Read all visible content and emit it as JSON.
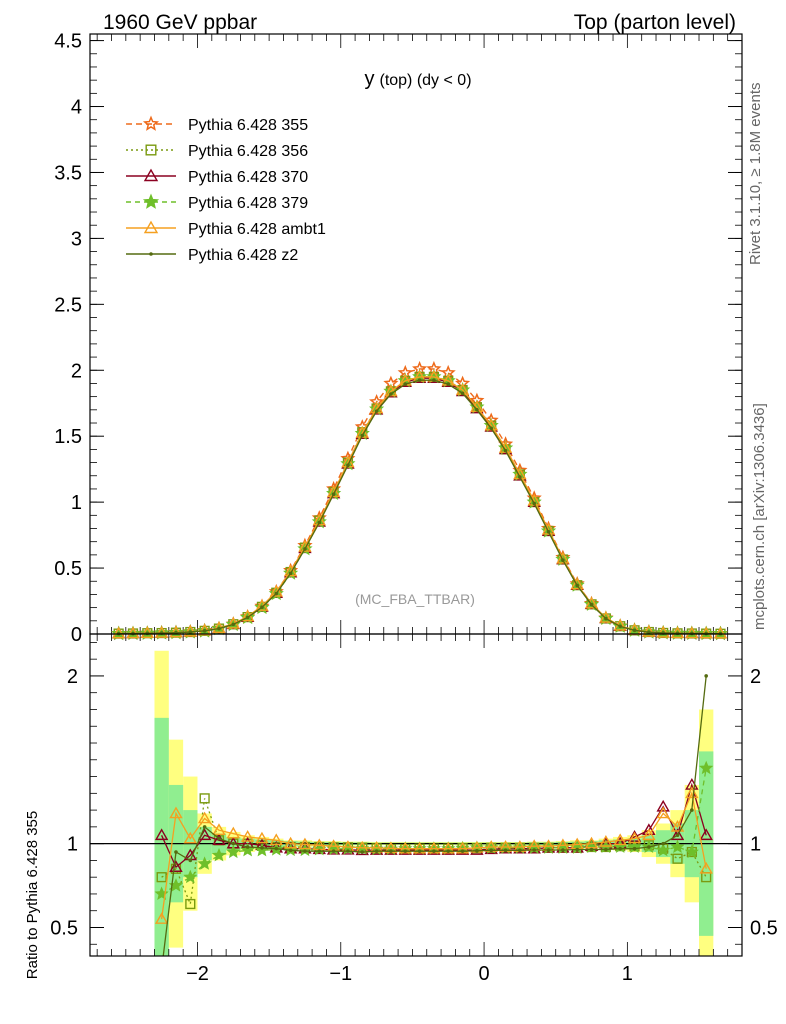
{
  "header": {
    "left": "1960 GeV ppbar",
    "right": "Top (parton level)"
  },
  "side_text": {
    "rivet": "Rivet 3.1.10, ≥ 1.8M events",
    "mcplots": "mcplots.cern.ch [arXiv:1306.3436]"
  },
  "chart_data": [
    {
      "type": "line",
      "title": "y (top) (dy < 0)",
      "title_main": "y",
      "title_sub": "(top) (dy < 0)",
      "watermark": "(MC_FBA_TTBAR)",
      "xlim": [
        -2.75,
        1.8
      ],
      "ylim": [
        0,
        4.55
      ],
      "yticks": [
        0,
        0.5,
        1,
        1.5,
        2,
        2.5,
        3,
        3.5,
        4,
        4.5
      ],
      "ytick_labels": [
        "0",
        "0.5",
        "1",
        "1.5",
        "2",
        "2.5",
        "3",
        "3.5",
        "4",
        "4.5"
      ],
      "legend_position": "top-left",
      "x": [
        -2.55,
        -2.45,
        -2.35,
        -2.25,
        -2.15,
        -2.05,
        -1.95,
        -1.85,
        -1.75,
        -1.65,
        -1.55,
        -1.45,
        -1.35,
        -1.25,
        -1.15,
        -1.05,
        -0.95,
        -0.85,
        -0.75,
        -0.65,
        -0.55,
        -0.45,
        -0.35,
        -0.25,
        -0.15,
        -0.05,
        0.05,
        0.15,
        0.25,
        0.35,
        0.45,
        0.55,
        0.65,
        0.75,
        0.85,
        0.95,
        1.05,
        1.15,
        1.25,
        1.35,
        1.45,
        1.55,
        1.65
      ],
      "series": [
        {
          "name": "Pythia 6.428 355",
          "color": "#ee6a1a",
          "marker": "star-open",
          "dash": "6,4",
          "values": [
            0.003,
            0.004,
            0.006,
            0.008,
            0.011,
            0.016,
            0.025,
            0.042,
            0.075,
            0.13,
            0.21,
            0.32,
            0.48,
            0.67,
            0.88,
            1.1,
            1.33,
            1.57,
            1.76,
            1.9,
            1.98,
            2.01,
            2.01,
            1.98,
            1.9,
            1.77,
            1.62,
            1.44,
            1.24,
            1.03,
            0.8,
            0.58,
            0.38,
            0.23,
            0.12,
            0.06,
            0.029,
            0.015,
            0.008,
            0.005,
            0.004,
            0.003,
            0.002
          ]
        },
        {
          "name": "Pythia 6.428 356",
          "color": "#7a9a10",
          "marker": "square-open",
          "dash": "2,3",
          "values": [
            0.003,
            0.004,
            0.006,
            0.007,
            0.01,
            0.015,
            0.024,
            0.041,
            0.074,
            0.128,
            0.206,
            0.313,
            0.47,
            0.655,
            0.86,
            1.075,
            1.3,
            1.53,
            1.71,
            1.84,
            1.92,
            1.95,
            1.95,
            1.92,
            1.85,
            1.72,
            1.58,
            1.4,
            1.21,
            1.0,
            0.78,
            0.565,
            0.37,
            0.225,
            0.118,
            0.059,
            0.028,
            0.015,
            0.008,
            0.005,
            0.004,
            0.003,
            0.002
          ]
        },
        {
          "name": "Pythia 6.428 370",
          "color": "#8b0020",
          "marker": "triangle-open",
          "dash": "",
          "values": [
            0.003,
            0.004,
            0.006,
            0.008,
            0.011,
            0.016,
            0.025,
            0.042,
            0.074,
            0.128,
            0.205,
            0.31,
            0.465,
            0.65,
            0.85,
            1.065,
            1.29,
            1.515,
            1.7,
            1.83,
            1.91,
            1.94,
            1.94,
            1.91,
            1.84,
            1.71,
            1.57,
            1.4,
            1.2,
            1.0,
            0.78,
            0.565,
            0.37,
            0.225,
            0.118,
            0.059,
            0.028,
            0.015,
            0.009,
            0.006,
            0.005,
            0.003,
            0.002
          ]
        },
        {
          "name": "Pythia 6.428 379",
          "color": "#6fbf2a",
          "marker": "star-filled",
          "dash": "5,4",
          "values": [
            0.002,
            0.003,
            0.005,
            0.007,
            0.009,
            0.014,
            0.022,
            0.039,
            0.071,
            0.124,
            0.2,
            0.305,
            0.46,
            0.645,
            0.85,
            1.065,
            1.29,
            1.52,
            1.705,
            1.84,
            1.92,
            1.95,
            1.95,
            1.92,
            1.85,
            1.72,
            1.58,
            1.41,
            1.21,
            1.0,
            0.78,
            0.565,
            0.37,
            0.224,
            0.117,
            0.058,
            0.028,
            0.014,
            0.008,
            0.005,
            0.004,
            0.003,
            0.002
          ]
        },
        {
          "name": "Pythia 6.428 ambt1",
          "color": "#f5a020",
          "marker": "triangle-open",
          "dash": "",
          "values": [
            0.003,
            0.004,
            0.006,
            0.008,
            0.011,
            0.017,
            0.026,
            0.044,
            0.077,
            0.133,
            0.212,
            0.32,
            0.475,
            0.66,
            0.86,
            1.075,
            1.3,
            1.525,
            1.71,
            1.84,
            1.92,
            1.95,
            1.95,
            1.92,
            1.85,
            1.72,
            1.58,
            1.41,
            1.21,
            1.01,
            0.79,
            0.57,
            0.375,
            0.23,
            0.122,
            0.062,
            0.03,
            0.016,
            0.009,
            0.005,
            0.004,
            0.003,
            0.002
          ]
        },
        {
          "name": "Pythia 6.428 z2",
          "color": "#556b10",
          "marker": "dot",
          "dash": "",
          "values": [
            0.002,
            0.003,
            0.005,
            0.007,
            0.01,
            0.015,
            0.024,
            0.041,
            0.073,
            0.126,
            0.203,
            0.307,
            0.46,
            0.645,
            0.845,
            1.06,
            1.28,
            1.505,
            1.69,
            1.82,
            1.895,
            1.925,
            1.925,
            1.895,
            1.825,
            1.7,
            1.56,
            1.39,
            1.19,
            0.99,
            0.775,
            0.56,
            0.368,
            0.223,
            0.117,
            0.058,
            0.028,
            0.014,
            0.008,
            0.005,
            0.004,
            0.003,
            0.002
          ]
        }
      ]
    },
    {
      "type": "line",
      "ylabel": "Ratio to Pythia 6.428 355",
      "xlim": [
        -2.75,
        1.8
      ],
      "ylim": [
        0.33,
        2.25
      ],
      "xticks": [
        -2,
        -1,
        0,
        1
      ],
      "xtick_labels": [
        "−2",
        "−1",
        "0",
        "1"
      ],
      "yticks": [
        0.5,
        1,
        2
      ],
      "ytick_labels": [
        "0.5",
        "1",
        "2"
      ],
      "reference": 1,
      "x": [
        -2.25,
        -2.15,
        -2.05,
        -1.95,
        -1.85,
        -1.75,
        -1.65,
        -1.55,
        -1.45,
        -1.35,
        -1.25,
        -1.15,
        -1.05,
        -0.95,
        -0.85,
        -0.75,
        -0.65,
        -0.55,
        -0.45,
        -0.35,
        -0.25,
        -0.15,
        -0.05,
        0.05,
        0.15,
        0.25,
        0.35,
        0.45,
        0.55,
        0.65,
        0.75,
        0.85,
        0.95,
        1.05,
        1.15,
        1.25,
        1.35,
        1.45,
        1.55
      ],
      "bands": {
        "yellow": [
          1.15,
          0.62,
          0.4,
          0.18,
          0.1,
          0.07,
          0.05,
          0.04,
          0.03,
          0.02,
          0.02,
          0.015,
          0.015,
          0.012,
          0.012,
          0.01,
          0.01,
          0.01,
          0.01,
          0.01,
          0.01,
          0.01,
          0.01,
          0.01,
          0.01,
          0.01,
          0.012,
          0.012,
          0.015,
          0.02,
          0.02,
          0.03,
          0.04,
          0.05,
          0.08,
          0.12,
          0.2,
          0.35,
          0.8
        ],
        "green": [
          0.75,
          0.35,
          0.2,
          0.1,
          0.06,
          0.04,
          0.03,
          0.025,
          0.02,
          0.015,
          0.012,
          0.01,
          0.01,
          0.008,
          0.008,
          0.006,
          0.006,
          0.006,
          0.006,
          0.006,
          0.006,
          0.006,
          0.006,
          0.006,
          0.006,
          0.006,
          0.008,
          0.008,
          0.01,
          0.012,
          0.015,
          0.02,
          0.025,
          0.03,
          0.05,
          0.08,
          0.12,
          0.2,
          0.55
        ]
      },
      "series": [
        {
          "name": "Pythia 6.428 356",
          "values": [
            0.8,
            0.85,
            0.64,
            1.27,
            1.02,
            1.0,
            1.0,
            0.99,
            0.98,
            0.98,
            0.98,
            0.98,
            0.978,
            0.978,
            0.976,
            0.972,
            0.968,
            0.968,
            0.97,
            0.97,
            0.97,
            0.973,
            0.973,
            0.975,
            0.975,
            0.975,
            0.975,
            0.975,
            0.975,
            0.975,
            0.98,
            0.98,
            0.985,
            0.985,
            0.99,
            0.97,
            0.91,
            0.95,
            0.8
          ]
        },
        {
          "name": "Pythia 6.428 370",
          "values": [
            1.05,
            0.86,
            0.93,
            1.05,
            1.02,
            1.0,
            1.0,
            0.99,
            0.975,
            0.97,
            0.97,
            0.966,
            0.963,
            0.963,
            0.96,
            0.962,
            0.962,
            0.962,
            0.962,
            0.962,
            0.962,
            0.962,
            0.962,
            0.966,
            0.97,
            0.97,
            0.97,
            0.975,
            0.975,
            0.975,
            0.985,
            1.0,
            1.0,
            1.04,
            1.08,
            1.22,
            1.05,
            1.35,
            1.05
          ]
        },
        {
          "name": "Pythia 6.428 379",
          "values": [
            0.7,
            0.75,
            0.8,
            0.88,
            0.93,
            0.95,
            0.96,
            0.96,
            0.965,
            0.962,
            0.962,
            0.966,
            0.968,
            0.97,
            0.97,
            0.968,
            0.968,
            0.97,
            0.97,
            0.97,
            0.97,
            0.973,
            0.975,
            0.975,
            0.975,
            0.975,
            0.975,
            0.975,
            0.975,
            0.975,
            0.98,
            0.98,
            0.98,
            0.98,
            0.98,
            0.96,
            0.98,
            0.95,
            1.45
          ]
        },
        {
          "name": "Pythia 6.428 ambt1",
          "values": [
            0.55,
            1.18,
            1.03,
            1.15,
            1.08,
            1.06,
            1.04,
            1.03,
            1.02,
            1.0,
            0.995,
            0.99,
            0.985,
            0.98,
            0.975,
            0.975,
            0.972,
            0.97,
            0.97,
            0.97,
            0.97,
            0.97,
            0.975,
            0.98,
            0.98,
            0.98,
            0.985,
            0.985,
            0.99,
            0.995,
            1.0,
            1.01,
            1.02,
            1.03,
            1.05,
            1.18,
            1.1,
            1.3,
            0.85
          ]
        },
        {
          "name": "Pythia 6.428 z2",
          "values": [
            0.25,
            0.95,
            0.9,
            1.1,
            1.03,
            1.0,
            0.98,
            0.975,
            0.97,
            0.96,
            0.955,
            0.955,
            0.955,
            0.955,
            0.95,
            0.955,
            0.955,
            0.955,
            0.955,
            0.955,
            0.955,
            0.955,
            0.957,
            0.96,
            0.96,
            0.96,
            0.962,
            0.962,
            0.962,
            0.965,
            0.965,
            0.965,
            0.97,
            0.97,
            0.98,
            1.0,
            1.05,
            1.2,
            2.0
          ]
        }
      ]
    }
  ]
}
